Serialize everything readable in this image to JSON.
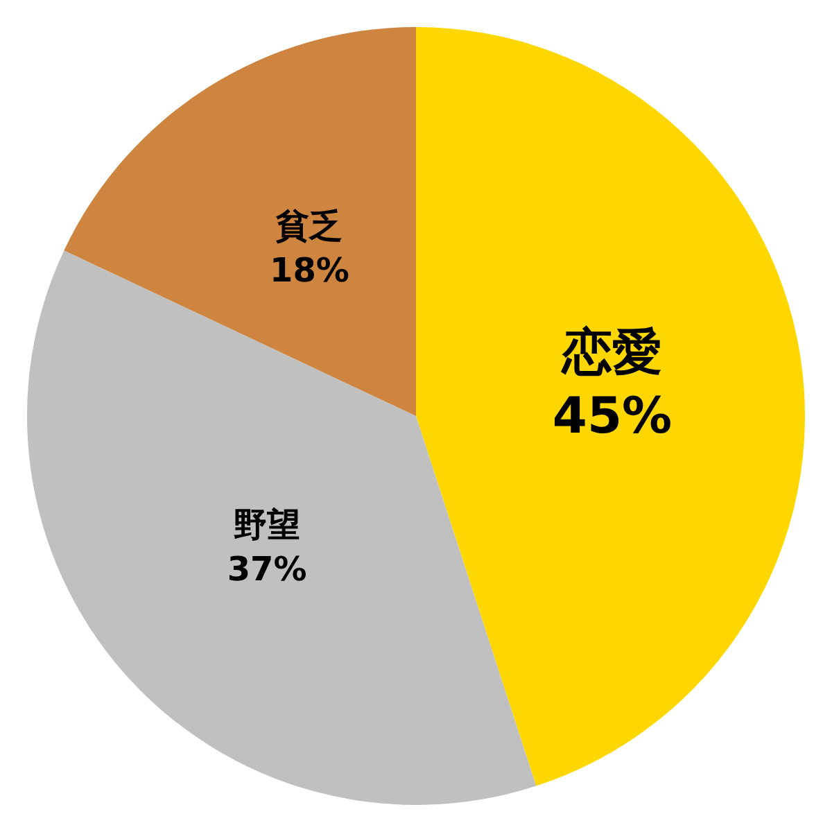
{
  "chart_data": {
    "type": "pie",
    "categories": [
      "恋愛",
      "野望",
      "貧乏"
    ],
    "values": [
      45,
      37,
      18
    ],
    "value_labels": [
      "45%",
      "37%",
      "18%"
    ],
    "colors": [
      "#ffd700",
      "#c0c0c0",
      "#cd853f"
    ]
  }
}
